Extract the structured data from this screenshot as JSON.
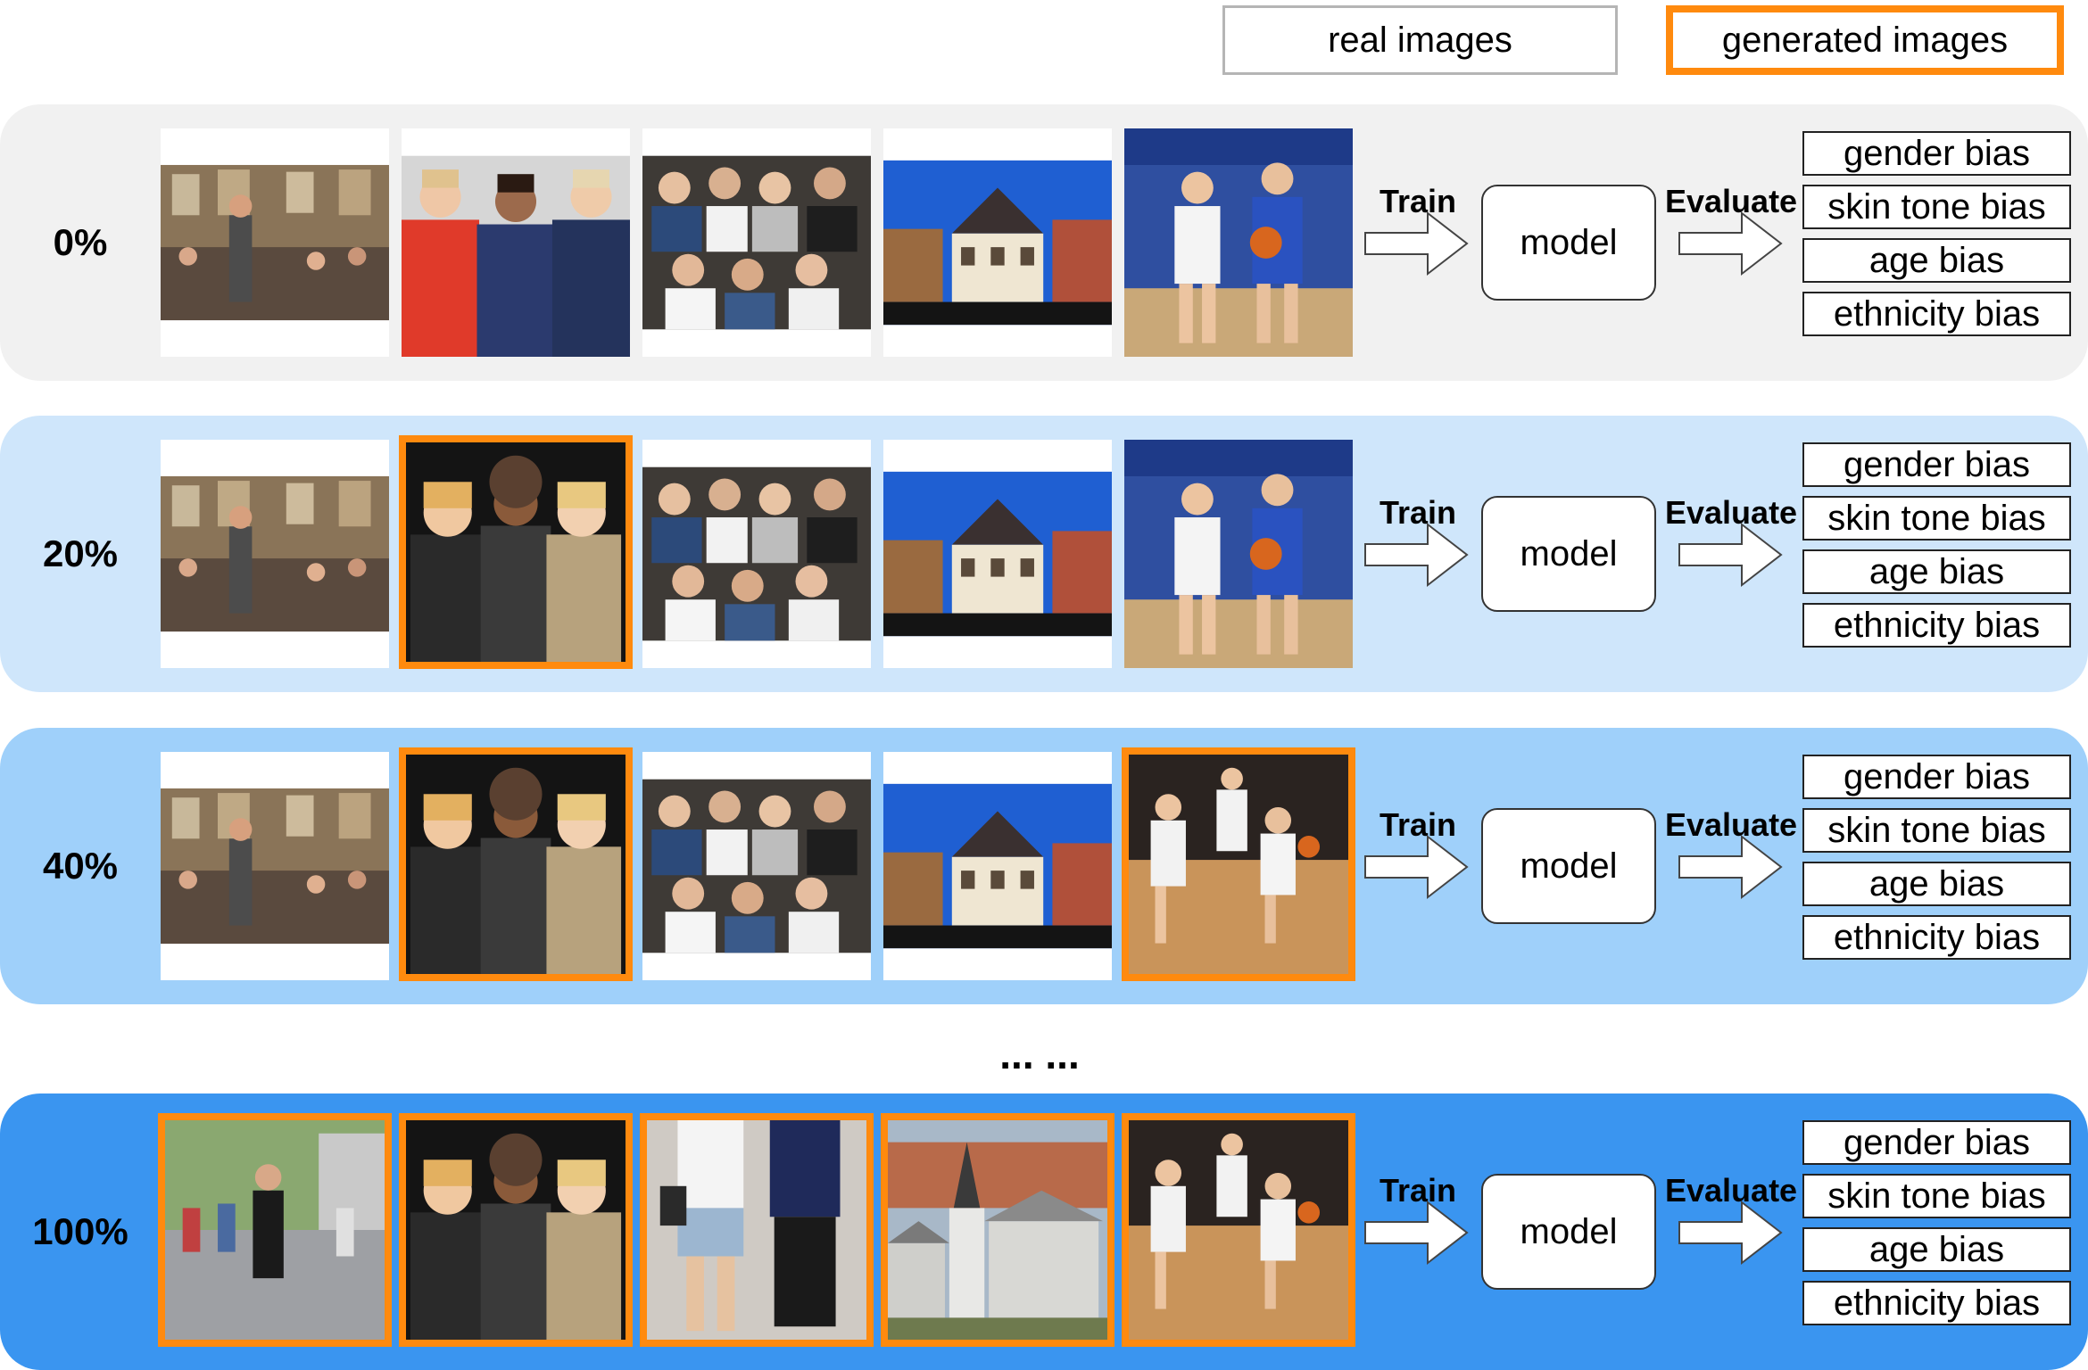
{
  "legend": {
    "real": "real images",
    "generated": "generated images"
  },
  "colors": {
    "generated_border": "#ff8a0e",
    "row_backgrounds": [
      "#f1f1f1",
      "#cfe6fb",
      "#9fd0fa",
      "#3a95f0"
    ]
  },
  "rows": [
    {
      "percent": "0%",
      "train": "Train",
      "model": "model",
      "evaluate": "Evaluate",
      "images": [
        "real",
        "real",
        "real",
        "real",
        "real"
      ],
      "biases": [
        "gender bias",
        "skin tone bias",
        "age bias",
        "ethnicity bias"
      ]
    },
    {
      "percent": "20%",
      "train": "Train",
      "model": "model",
      "evaluate": "Evaluate",
      "images": [
        "real",
        "generated",
        "real",
        "real",
        "real"
      ],
      "biases": [
        "gender bias",
        "skin tone bias",
        "age bias",
        "ethnicity bias"
      ]
    },
    {
      "percent": "40%",
      "train": "Train",
      "model": "model",
      "evaluate": "Evaluate",
      "images": [
        "real",
        "generated",
        "real",
        "real",
        "generated"
      ],
      "biases": [
        "gender bias",
        "skin tone bias",
        "age bias",
        "ethnicity bias"
      ]
    },
    {
      "percent": "100%",
      "train": "Train",
      "model": "model",
      "evaluate": "Evaluate",
      "images": [
        "generated",
        "generated",
        "generated",
        "generated",
        "generated"
      ],
      "biases": [
        "gender bias",
        "skin tone bias",
        "age bias",
        "ethnicity bias"
      ]
    }
  ],
  "ellipsis": "... ..."
}
